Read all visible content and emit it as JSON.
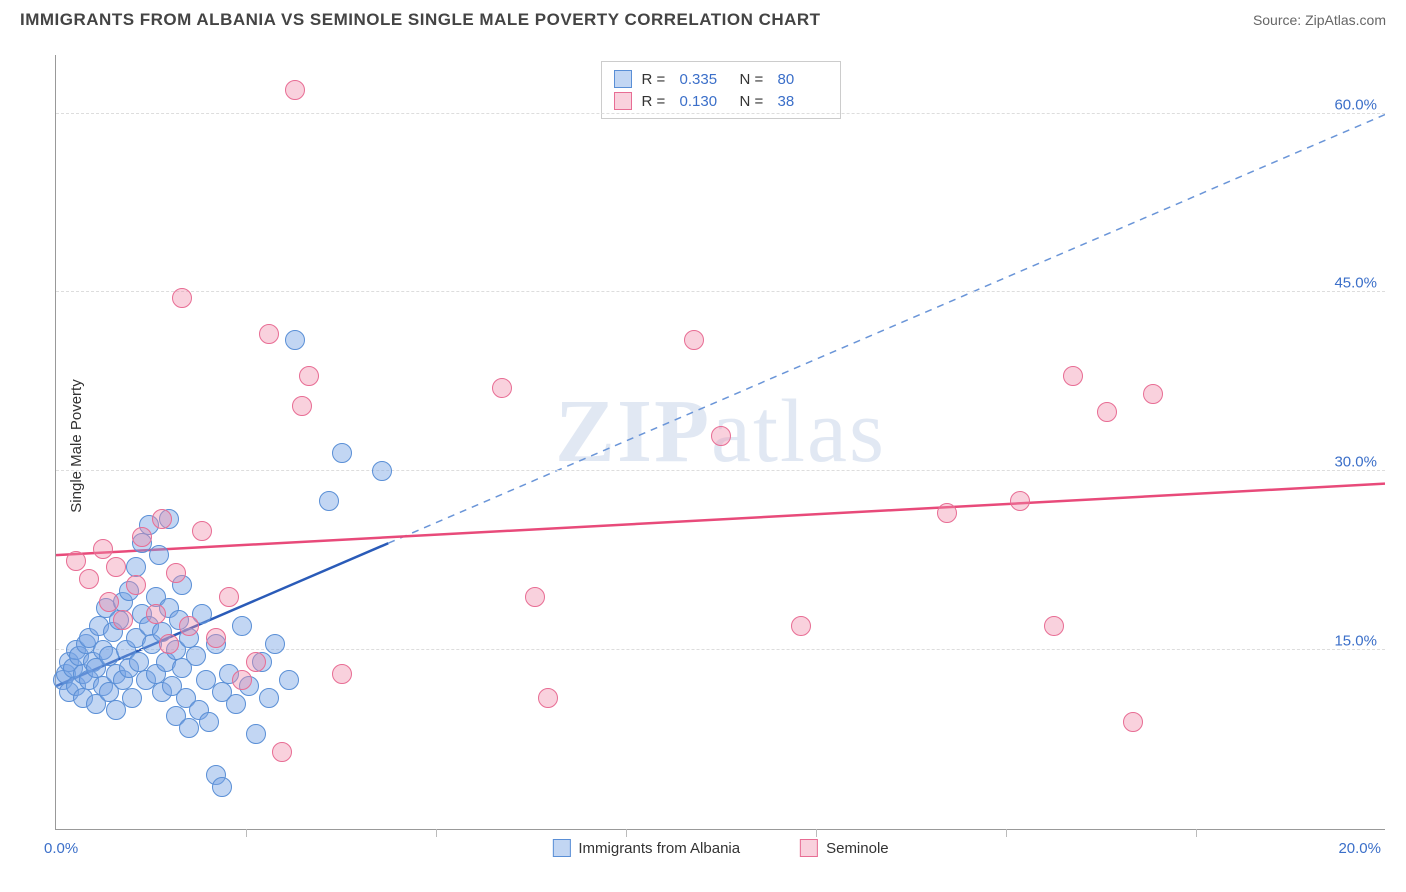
{
  "header": {
    "title": "IMMIGRANTS FROM ALBANIA VS SEMINOLE SINGLE MALE POVERTY CORRELATION CHART",
    "source_prefix": "Source: ",
    "source_name": "ZipAtlas.com"
  },
  "ylabel": "Single Male Poverty",
  "watermark": {
    "part1": "ZIP",
    "part2": "atlas"
  },
  "chart": {
    "type": "scatter",
    "xlim": [
      0,
      20
    ],
    "ylim": [
      0,
      65
    ],
    "x_tick_min": "0.0%",
    "x_tick_max": "20.0%",
    "x_minor_ticks": [
      2.857,
      5.714,
      8.571,
      11.428,
      14.285,
      17.142
    ],
    "y_gridlines": [
      {
        "val": 15,
        "label": "15.0%"
      },
      {
        "val": 30,
        "label": "30.0%"
      },
      {
        "val": 45,
        "label": "45.0%"
      },
      {
        "val": 60,
        "label": "60.0%"
      }
    ],
    "point_radius": 10,
    "series": [
      {
        "id": "albania",
        "label": "Immigrants from Albania",
        "fill": "rgba(120,165,228,0.45)",
        "stroke": "#5a8fd6",
        "trend_color": "#2a5bb8",
        "trend_dash_color": "#6a95d8",
        "R": "0.335",
        "N": "80",
        "trend_solid": {
          "x1": 0,
          "y1": 12.0,
          "x2": 5.0,
          "y2": 24.0
        },
        "trend_dash": {
          "x1": 5.0,
          "y1": 24.0,
          "x2": 20.0,
          "y2": 60.0
        },
        "points": [
          [
            0.1,
            12.5
          ],
          [
            0.15,
            13.0
          ],
          [
            0.2,
            11.5
          ],
          [
            0.2,
            14.0
          ],
          [
            0.25,
            13.5
          ],
          [
            0.3,
            12.0
          ],
          [
            0.3,
            15.0
          ],
          [
            0.35,
            14.5
          ],
          [
            0.4,
            11.0
          ],
          [
            0.4,
            13.0
          ],
          [
            0.45,
            15.5
          ],
          [
            0.5,
            12.5
          ],
          [
            0.5,
            16.0
          ],
          [
            0.55,
            14.0
          ],
          [
            0.6,
            10.5
          ],
          [
            0.6,
            13.5
          ],
          [
            0.65,
            17.0
          ],
          [
            0.7,
            12.0
          ],
          [
            0.7,
            15.0
          ],
          [
            0.75,
            18.5
          ],
          [
            0.8,
            11.5
          ],
          [
            0.8,
            14.5
          ],
          [
            0.85,
            16.5
          ],
          [
            0.9,
            13.0
          ],
          [
            0.9,
            10.0
          ],
          [
            0.95,
            17.5
          ],
          [
            1.0,
            12.5
          ],
          [
            1.0,
            19.0
          ],
          [
            1.05,
            15.0
          ],
          [
            1.1,
            13.5
          ],
          [
            1.1,
            20.0
          ],
          [
            1.15,
            11.0
          ],
          [
            1.2,
            16.0
          ],
          [
            1.2,
            22.0
          ],
          [
            1.25,
            14.0
          ],
          [
            1.3,
            18.0
          ],
          [
            1.3,
            24.0
          ],
          [
            1.35,
            12.5
          ],
          [
            1.4,
            17.0
          ],
          [
            1.4,
            25.5
          ],
          [
            1.45,
            15.5
          ],
          [
            1.5,
            13.0
          ],
          [
            1.5,
            19.5
          ],
          [
            1.55,
            23.0
          ],
          [
            1.6,
            11.5
          ],
          [
            1.6,
            16.5
          ],
          [
            1.65,
            14.0
          ],
          [
            1.7,
            18.5
          ],
          [
            1.7,
            26.0
          ],
          [
            1.75,
            12.0
          ],
          [
            1.8,
            15.0
          ],
          [
            1.8,
            9.5
          ],
          [
            1.85,
            17.5
          ],
          [
            1.9,
            13.5
          ],
          [
            1.9,
            20.5
          ],
          [
            1.95,
            11.0
          ],
          [
            2.0,
            16.0
          ],
          [
            2.0,
            8.5
          ],
          [
            2.1,
            14.5
          ],
          [
            2.15,
            10.0
          ],
          [
            2.2,
            18.0
          ],
          [
            2.25,
            12.5
          ],
          [
            2.3,
            9.0
          ],
          [
            2.4,
            15.5
          ],
          [
            2.4,
            4.5
          ],
          [
            2.5,
            11.5
          ],
          [
            2.5,
            3.5
          ],
          [
            2.6,
            13.0
          ],
          [
            2.7,
            10.5
          ],
          [
            2.8,
            17.0
          ],
          [
            2.9,
            12.0
          ],
          [
            3.0,
            8.0
          ],
          [
            3.1,
            14.0
          ],
          [
            3.2,
            11.0
          ],
          [
            3.3,
            15.5
          ],
          [
            3.5,
            12.5
          ],
          [
            3.6,
            41.0
          ],
          [
            4.1,
            27.5
          ],
          [
            4.3,
            31.5
          ],
          [
            4.9,
            30.0
          ]
        ]
      },
      {
        "id": "seminole",
        "label": "Seminole",
        "fill": "rgba(240,140,170,0.40)",
        "stroke": "#e86d94",
        "trend_color": "#e84a7a",
        "R": "0.130",
        "N": "38",
        "trend_solid": {
          "x1": 0,
          "y1": 23.0,
          "x2": 20.0,
          "y2": 29.0
        },
        "points": [
          [
            0.3,
            22.5
          ],
          [
            0.5,
            21.0
          ],
          [
            0.7,
            23.5
          ],
          [
            0.8,
            19.0
          ],
          [
            0.9,
            22.0
          ],
          [
            1.0,
            17.5
          ],
          [
            1.2,
            20.5
          ],
          [
            1.3,
            24.5
          ],
          [
            1.5,
            18.0
          ],
          [
            1.6,
            26.0
          ],
          [
            1.7,
            15.5
          ],
          [
            1.8,
            21.5
          ],
          [
            1.9,
            44.5
          ],
          [
            2.0,
            17.0
          ],
          [
            2.2,
            25.0
          ],
          [
            2.4,
            16.0
          ],
          [
            2.6,
            19.5
          ],
          [
            2.8,
            12.5
          ],
          [
            3.0,
            14.0
          ],
          [
            3.2,
            41.5
          ],
          [
            3.4,
            6.5
          ],
          [
            3.6,
            62.0
          ],
          [
            3.7,
            35.5
          ],
          [
            3.8,
            38.0
          ],
          [
            4.3,
            13.0
          ],
          [
            6.7,
            37.0
          ],
          [
            7.2,
            19.5
          ],
          [
            7.4,
            11.0
          ],
          [
            9.6,
            41.0
          ],
          [
            10.0,
            33.0
          ],
          [
            11.2,
            17.0
          ],
          [
            13.4,
            26.5
          ],
          [
            14.5,
            27.5
          ],
          [
            15.0,
            17.0
          ],
          [
            15.3,
            38.0
          ],
          [
            15.8,
            35.0
          ],
          [
            16.2,
            9.0
          ],
          [
            16.5,
            36.5
          ]
        ]
      }
    ]
  }
}
